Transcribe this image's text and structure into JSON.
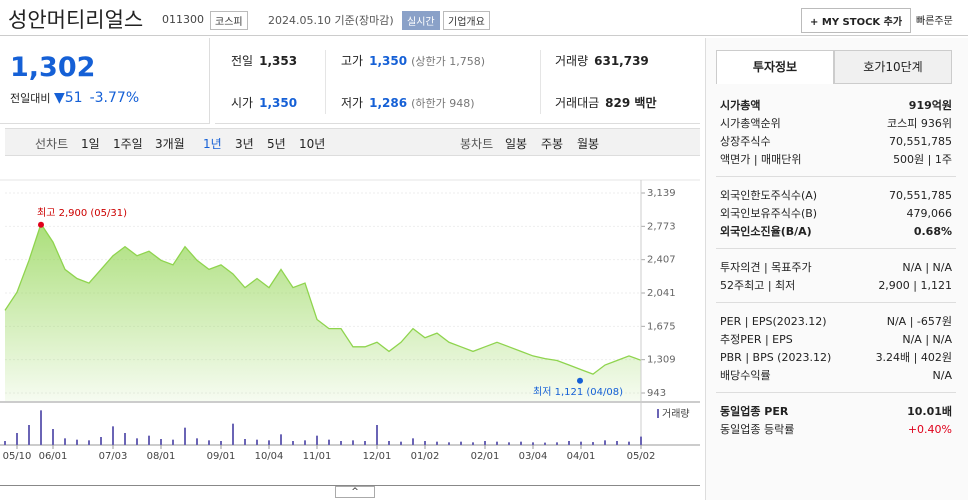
{
  "header": {
    "name": "성안머티리얼스",
    "code": "011300",
    "market": "코스피",
    "date": "2024.05.10 기준(장마감)",
    "realtime": "실시간",
    "company": "기업개요",
    "mystock": "MY STOCK 추가",
    "quick": "빠른주문"
  },
  "price": {
    "current": "1,302",
    "change_label": "전일대비",
    "change": "51",
    "rate": "-3.77%",
    "color": "#1560d6"
  },
  "summary": [
    {
      "label": "전일",
      "value": "1,353"
    },
    {
      "label": "고가",
      "value": "1,350",
      "extra": "(상한가 1,758)",
      "color": "#1560d6"
    },
    {
      "label": "거래량",
      "value": "631,739"
    },
    {
      "label": "시가",
      "value": "1,350",
      "color": "#1560d6"
    },
    {
      "label": "저가",
      "value": "1,286",
      "extra": "(하한가 948)",
      "color": "#1560d6"
    },
    {
      "label": "거래대금",
      "value": "829 백만"
    }
  ],
  "periods": {
    "line_label": "선차트",
    "items": [
      "1일",
      "1주일",
      "3개월",
      "1년",
      "3년",
      "5년",
      "10년"
    ],
    "selected": 3,
    "candle_label": "봉차트",
    "candles": [
      "일봉",
      "주봉",
      "월봉"
    ]
  },
  "chart_data": {
    "type": "area",
    "color": "#8fd44e",
    "categories": [
      null,
      "05/10",
      null,
      null,
      "06/01",
      null,
      null,
      null,
      null,
      "07/03",
      null,
      null,
      null,
      "08/01",
      null,
      null,
      null,
      null,
      "09/01",
      null,
      null,
      null,
      "10/04",
      null,
      null,
      null,
      "11/01",
      null,
      null,
      null,
      null,
      "12/01",
      null,
      null,
      null,
      "01/02",
      null,
      null,
      null,
      null,
      "02/01",
      null,
      null,
      null,
      "03/04",
      null,
      null,
      null,
      "04/01",
      null,
      null,
      null,
      null,
      "05/02"
    ],
    "values": [
      1850,
      2050,
      2400,
      2800,
      2600,
      2300,
      2200,
      2150,
      2300,
      2450,
      2550,
      2450,
      2500,
      2400,
      2350,
      2550,
      2400,
      2300,
      2350,
      2250,
      2100,
      2200,
      2100,
      2300,
      2100,
      2150,
      1750,
      1650,
      1650,
      1450,
      1450,
      1500,
      1400,
      1500,
      1650,
      1550,
      1600,
      1500,
      1450,
      1400,
      1450,
      1500,
      1450,
      1400,
      1350,
      1320,
      1300,
      1250,
      1200,
      1150,
      1250,
      1300,
      1350,
      1302
    ],
    "ylim": [
      943,
      3139
    ],
    "yticks": [
      {
        "value": 3139,
        "label": "3,139"
      },
      {
        "value": 2773,
        "label": "2,773"
      },
      {
        "value": 2407,
        "label": "2,407"
      },
      {
        "value": 2041,
        "label": "2,041"
      },
      {
        "value": 1675,
        "label": "1,675"
      },
      {
        "value": 1309,
        "label": "1,309"
      },
      943
    ],
    "max": {
      "value": 2900,
      "label": "최고 2,900 (05/31)"
    },
    "min": {
      "value": 1121,
      "label": "최저 1,121 (04/08)"
    },
    "volume": {
      "name": "거래량",
      "color": "#6a64b5",
      "ylim": [
        0,
        3000000
      ],
      "values": [
        300000,
        900000,
        1500000,
        2600000,
        1200000,
        500000,
        400000,
        350000,
        600000,
        1400000,
        900000,
        500000,
        700000,
        450000,
        400000,
        1300000,
        500000,
        350000,
        300000,
        1600000,
        450000,
        400000,
        350000,
        800000,
        300000,
        350000,
        700000,
        400000,
        300000,
        350000,
        300000,
        1500000,
        300000,
        250000,
        500000,
        300000,
        250000,
        200000,
        250000,
        200000,
        300000,
        250000,
        200000,
        250000,
        200000,
        180000,
        200000,
        300000,
        250000,
        220000,
        350000,
        300000,
        250000,
        630000
      ]
    }
  },
  "tabs": [
    "투자정보",
    "호가10단계"
  ],
  "info": [
    [
      {
        "label": "시가총액",
        "value": "919억원",
        "bold": true
      },
      {
        "label": "시가총액순위",
        "value": "코스피 936위"
      },
      {
        "label": "상장주식수",
        "value": "70,551,785"
      },
      {
        "label": "액면가 | 매매단위",
        "value": "500원 | 1주"
      }
    ],
    [
      {
        "label": "외국인한도주식수(A)",
        "value": "70,551,785"
      },
      {
        "label": "외국인보유주식수(B)",
        "value": "479,066"
      },
      {
        "label": "외국인소진율(B/A)",
        "value": "0.68%",
        "bold": true
      }
    ],
    [
      {
        "label": "투자의견 | 목표주가",
        "value": "N/A | N/A"
      },
      {
        "label": "52주최고 | 최저",
        "value": "2,900 | 1,121"
      }
    ],
    [
      {
        "label": "PER | EPS(2023.12)",
        "value": "N/A | -657원"
      },
      {
        "label": "추정PER | EPS",
        "value": "N/A | N/A"
      },
      {
        "label": "PBR | BPS (2023.12)",
        "value": "3.24배 | 402원"
      },
      {
        "label": "배당수익률",
        "value": "N/A"
      }
    ],
    [
      {
        "label": "동일업종 PER",
        "value": "10.01배",
        "bold": true
      },
      {
        "label": "동일업종 등락률",
        "value": "+0.40%",
        "color": "#e0001b"
      }
    ]
  ]
}
